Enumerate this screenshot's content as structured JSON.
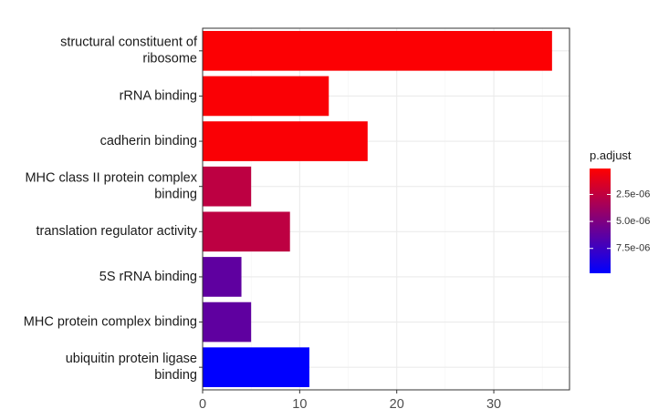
{
  "chart_data": {
    "type": "bar",
    "orientation": "horizontal",
    "categories": [
      "structural constituent of ribosome",
      "rRNA binding",
      "cadherin binding",
      "MHC class II protein complex binding",
      "translation regulator activity",
      "5S rRNA binding",
      "MHC protein complex binding",
      "ubiquitin protein ligase binding"
    ],
    "category_lines": [
      [
        "structural constituent of",
        "ribosome"
      ],
      [
        "rRNA binding"
      ],
      [
        "cadherin binding"
      ],
      [
        "MHC class II protein complex",
        "binding"
      ],
      [
        "translation regulator activity"
      ],
      [
        "5S rRNA binding"
      ],
      [
        "MHC protein complex binding"
      ],
      [
        "ubiquitin protein ligase",
        "binding"
      ]
    ],
    "values": [
      36,
      13,
      17,
      5,
      9,
      4,
      5,
      11
    ],
    "p_adjust": [
      2e-07,
      3e-07,
      3e-07,
      2.6e-06,
      2.6e-06,
      6.2e-06,
      6.2e-06,
      9.8e-06
    ],
    "xlim": [
      0,
      37.8
    ],
    "xticks": [
      0,
      10,
      20,
      30
    ],
    "xtick_labels": [
      "0",
      "10",
      "20",
      "30"
    ],
    "grid": true,
    "legend": {
      "title": "p.adjust",
      "placement": "right",
      "range": [
        1e-07,
        9.8e-06
      ],
      "ticks": [
        2.5e-06,
        5e-06,
        7.5e-06
      ],
      "tick_labels": [
        "2.5e-06",
        "5.0e-06",
        "7.5e-06"
      ],
      "color_low_p": "#ff0000",
      "color_high_p": "#0000ff"
    },
    "colors": {
      "panel_border": "#333333",
      "grid_major": "#ebebeb",
      "grid_minor": "#f5f5f5"
    }
  }
}
